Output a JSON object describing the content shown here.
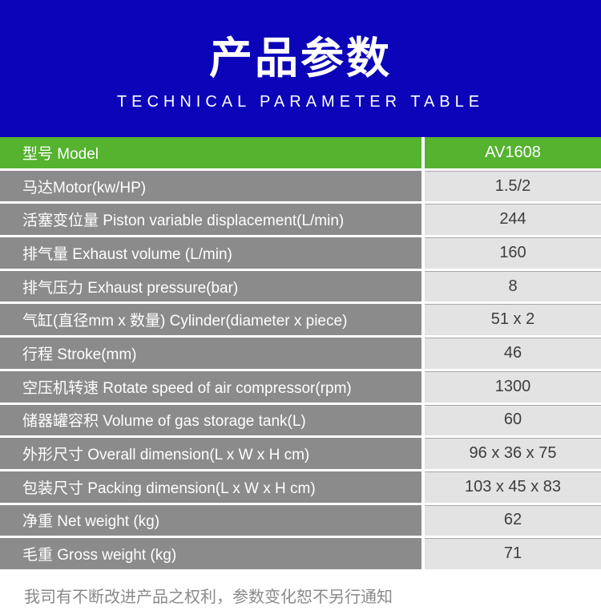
{
  "header": {
    "title": "产品参数",
    "subtitle": "TECHNICAL PARAMETER TABLE"
  },
  "table": {
    "rows": [
      {
        "label": "型号 Model",
        "value": "AV1608",
        "highlighted": true
      },
      {
        "label": "马达Motor(kw/HP)",
        "value": "1.5/2"
      },
      {
        "label": "活塞变位量 Piston variable displacement(L/min)",
        "value": "244"
      },
      {
        "label": "排气量 Exhaust volume (L/min)",
        "value": "160"
      },
      {
        "label": "排气压力 Exhaust pressure(bar)",
        "value": "8"
      },
      {
        "label": "气缸(直径mm x 数量) Cylinder(diameter x piece)",
        "value": "51 x 2"
      },
      {
        "label": "行程 Stroke(mm)",
        "value": "46"
      },
      {
        "label": "空压机转速 Rotate speed of air compressor(rpm)",
        "value": "1300"
      },
      {
        "label": "储器罐容积 Volume of gas storage tank(L)",
        "value": "60"
      },
      {
        "label": "外形尺寸 Overall dimension(L x W x H cm)",
        "value": "96 x 36 x 75"
      },
      {
        "label": "包装尺寸 Packing dimension(L x W x H cm)",
        "value": "103 x 45 x 83"
      },
      {
        "label": "净重 Net weight (kg)",
        "value": "62"
      },
      {
        "label": "毛重 Gross weight (kg)",
        "value": "71"
      }
    ]
  },
  "footer": {
    "note": "我司有不断改进产品之权利，参数变化恕不另行通知"
  },
  "colors": {
    "banner_bg": "#0b04b8",
    "highlight_green": "#55b32f",
    "label_bg": "#8b8b8b",
    "value_bg": "#e3e3e3",
    "banner_text": "#ffffff",
    "value_text": "#3d3d3d",
    "footer_text": "#8a8a8a"
  }
}
